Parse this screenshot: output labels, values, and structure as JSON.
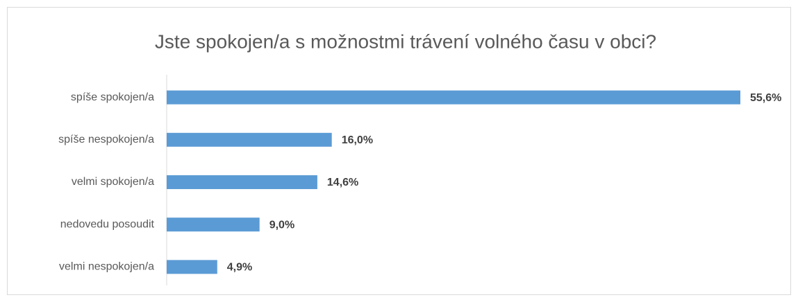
{
  "chart_data": {
    "type": "bar",
    "orientation": "horizontal",
    "title": "Jste spokojen/a s možnostmi trávení volného času v obci?",
    "categories": [
      "spíše spokojen/a",
      "spíše nespokojen/a",
      "velmi spokojen/a",
      "nedovedu posoudit",
      "velmi nespokojen/a"
    ],
    "values": [
      55.6,
      16.0,
      14.6,
      9.0,
      4.9
    ],
    "value_labels": [
      "55,6%",
      "16,0%",
      "14,6%",
      "9,0%",
      "4,9%"
    ],
    "color": "#5b9bd5"
  }
}
